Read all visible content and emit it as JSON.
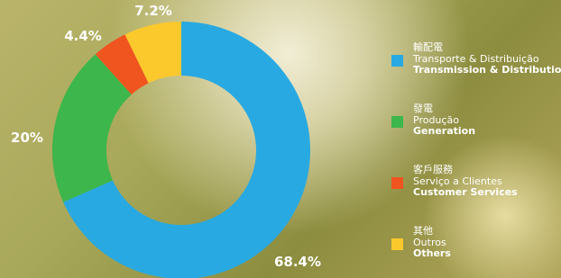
{
  "chart_data": {
    "type": "donut",
    "labels_zh": [
      "輸配電",
      "發電",
      "客戶服務",
      "其他"
    ],
    "labels_pt": [
      "Transporte & Distribuição",
      "Produção",
      "Serviço a Clientes",
      "Outros"
    ],
    "categories": [
      "Transmission & Distribution",
      "Generation",
      "Customer Services",
      "Others"
    ],
    "values": [
      68.4,
      20,
      4.4,
      7.2
    ],
    "value_labels": [
      "68.4%",
      "20%",
      "4.4%",
      "7.2%"
    ],
    "colors": [
      "#29a9e1",
      "#3db64b",
      "#f0541f",
      "#fcc92c"
    ]
  }
}
